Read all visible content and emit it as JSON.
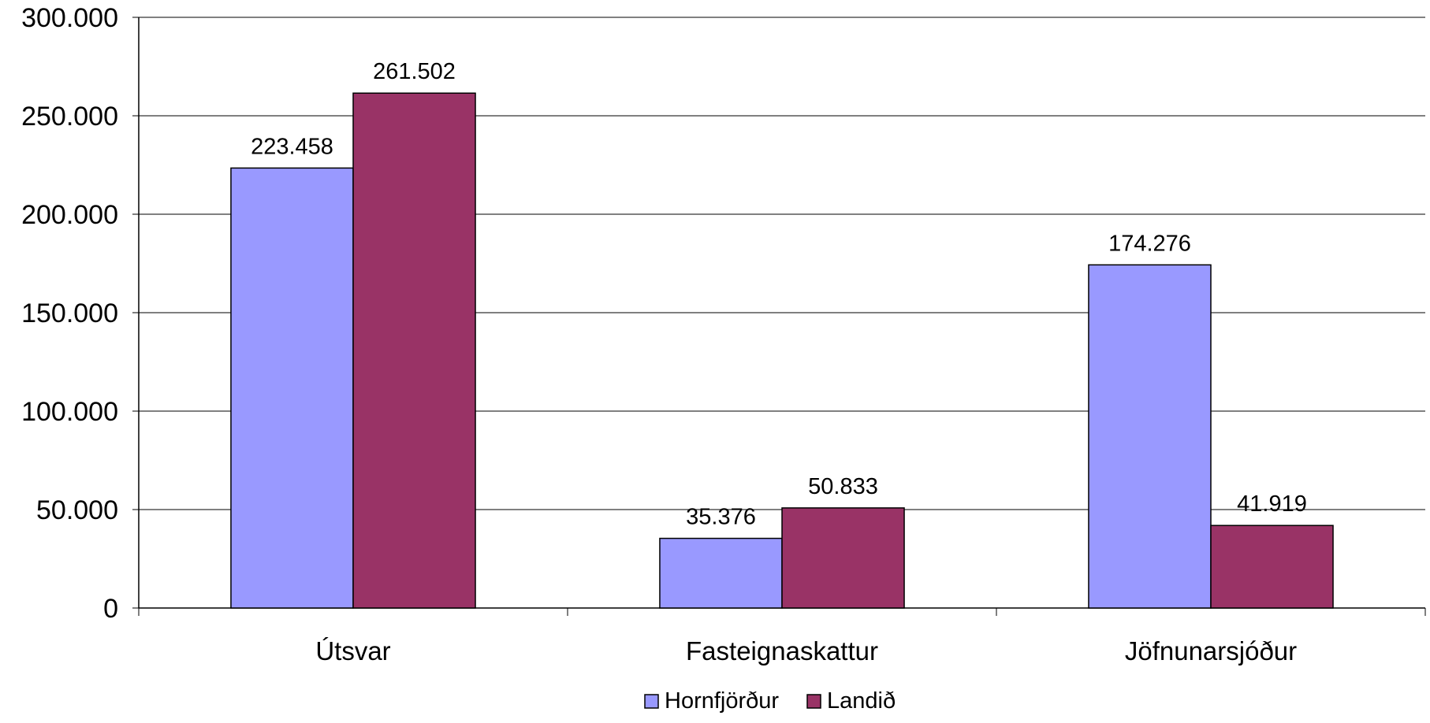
{
  "chart_data": {
    "type": "bar",
    "categories": [
      "Útsvar",
      "Fasteignaskattur",
      "Jöfnunarsjóður"
    ],
    "series": [
      {
        "name": "Hornfjörður",
        "values": [
          223458,
          35376,
          174276
        ],
        "labels": [
          "223.458",
          "35.376",
          "174.276"
        ],
        "color": "#9999ff"
      },
      {
        "name": "Landið",
        "values": [
          261502,
          50833,
          41919
        ],
        "labels": [
          "261.502",
          "50.833",
          "41.919"
        ],
        "color": "#993366"
      }
    ],
    "y_ticks": [
      0,
      50000,
      100000,
      150000,
      200000,
      250000,
      300000
    ],
    "y_tick_labels": [
      "0",
      "50.000",
      "100.000",
      "150.000",
      "200.000",
      "250.000",
      "300.000"
    ],
    "ylim": [
      0,
      300000
    ],
    "grid": true,
    "legend_position": "bottom"
  }
}
